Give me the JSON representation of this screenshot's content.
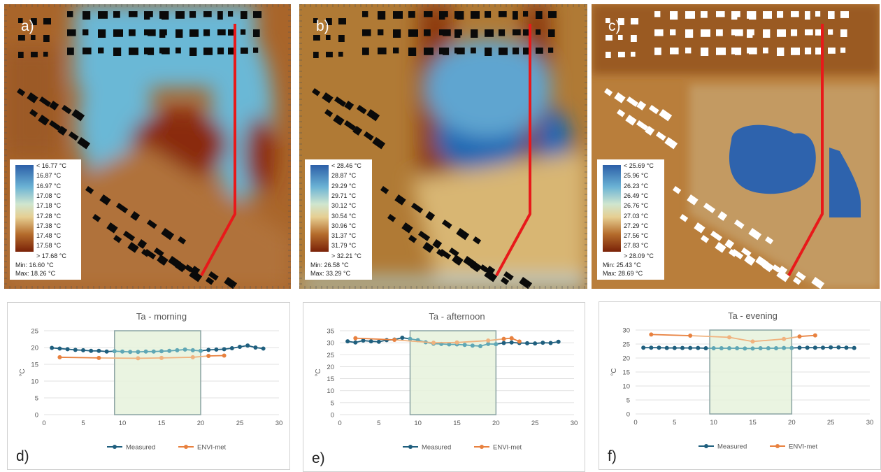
{
  "maps": [
    {
      "letter": "a)",
      "ticks": [
        "< 16.77 °C",
        "16.87 °C",
        "16.97 °C",
        "17.08 °C",
        "17.18 °C",
        "17.28 °C",
        "17.38 °C",
        "17.48 °C",
        "17.58 °C",
        "> 17.68 °C"
      ],
      "min": "Min: 16.60 °C",
      "max": "Max: 18.26 °C"
    },
    {
      "letter": "b)",
      "ticks": [
        "< 28.46 °C",
        "28.87  °C",
        "29.29  °C",
        "29.71  °C",
        "30.12  °C",
        "30.54  °C",
        "30.96  °C",
        "31.37  °C",
        "31.79  °C",
        "> 32.21 °C"
      ],
      "min": "Min: 26.58 °C",
      "max": "Max: 33.29 °C"
    },
    {
      "letter": "c)",
      "ticks": [
        "< 25.69 °C",
        "25.96  °C",
        "26.23  °C",
        "26.49  °C",
        "26.76  °C",
        "27.03  °C",
        "27.29  °C",
        "27.56  °C",
        "27.83  °C",
        "> 28.09 °C"
      ],
      "min": "Min: 25.43 °C",
      "max": "Max: 28.69 °C"
    }
  ],
  "colors": {
    "measured": "#1f5f7e",
    "measured_light": "#5fa7b5",
    "envimet": "#e8813f",
    "envimet_light": "#f0b27e",
    "highlight_fill": "#e6f2dc",
    "highlight_stroke": "#8aa3a3",
    "path": "#e8191a"
  },
  "chart_data": [
    {
      "type": "line",
      "letter": "d)",
      "title": "Ta - morning",
      "ylabel": "°C",
      "xlim": [
        0,
        30
      ],
      "ylim": [
        0,
        25
      ],
      "xticks": [
        0,
        5,
        10,
        15,
        20,
        25,
        30
      ],
      "yticks": [
        0,
        5,
        10,
        15,
        20,
        25
      ],
      "highlight_x": [
        9,
        20
      ],
      "series": [
        {
          "name": "Measured",
          "x": [
            1,
            2,
            3,
            4,
            5,
            6,
            7,
            8,
            9,
            10,
            11,
            12,
            13,
            14,
            15,
            16,
            17,
            18,
            19,
            20,
            21,
            22,
            23,
            24,
            25,
            26,
            27,
            28
          ],
          "y": [
            19.9,
            19.7,
            19.5,
            19.3,
            19.2,
            19.0,
            19.0,
            18.8,
            18.9,
            18.8,
            18.7,
            18.7,
            18.8,
            18.8,
            18.9,
            19.0,
            19.2,
            19.4,
            19.2,
            19.0,
            19.3,
            19.4,
            19.5,
            19.8,
            20.2,
            20.6,
            20.0,
            19.7
          ]
        },
        {
          "name": "ENVI-met",
          "x": [
            2,
            7,
            12,
            15,
            19,
            21,
            23
          ],
          "y": [
            17.1,
            16.9,
            16.8,
            16.9,
            17.1,
            17.5,
            17.6
          ]
        }
      ]
    },
    {
      "type": "line",
      "letter": "e)",
      "title": "Ta - afternoon",
      "ylabel": "°C",
      "xlim": [
        0,
        30
      ],
      "ylim": [
        0,
        35
      ],
      "xticks": [
        0,
        5,
        10,
        15,
        20,
        25,
        30
      ],
      "yticks": [
        0,
        5,
        10,
        15,
        20,
        25,
        30,
        35
      ],
      "highlight_x": [
        9,
        20
      ],
      "series": [
        {
          "name": "Measured",
          "x": [
            1,
            2,
            3,
            4,
            5,
            6,
            7,
            8,
            9,
            10,
            11,
            12,
            13,
            14,
            15,
            16,
            17,
            18,
            19,
            20,
            21,
            22,
            23,
            24,
            25,
            26,
            27,
            28
          ],
          "y": [
            30.6,
            30.1,
            30.9,
            30.6,
            30.4,
            31.1,
            31.3,
            32.1,
            31.6,
            31.1,
            30.2,
            29.6,
            29.5,
            29.3,
            29.3,
            29.1,
            28.8,
            28.6,
            29.5,
            29.4,
            29.9,
            30.1,
            29.9,
            29.8,
            29.7,
            30.0,
            29.9,
            30.4
          ]
        },
        {
          "name": "ENVI-met",
          "x": [
            2,
            7,
            12,
            15,
            19,
            21,
            22,
            23
          ],
          "y": [
            31.9,
            31.2,
            30.0,
            30.1,
            30.9,
            31.6,
            31.9,
            30.5
          ]
        }
      ]
    },
    {
      "type": "line",
      "letter": "f)",
      "title": "Ta - evening",
      "ylabel": "°C",
      "xlim": [
        0,
        30
      ],
      "ylim": [
        0,
        30
      ],
      "xticks": [
        0,
        5,
        10,
        15,
        20,
        25,
        30
      ],
      "yticks": [
        0,
        5,
        10,
        15,
        20,
        25,
        30
      ],
      "highlight_x": [
        9.5,
        20
      ],
      "series": [
        {
          "name": "Measured",
          "x": [
            1,
            2,
            3,
            4,
            5,
            6,
            7,
            8,
            9,
            10,
            11,
            12,
            13,
            14,
            15,
            16,
            17,
            18,
            19,
            20,
            21,
            22,
            23,
            24,
            25,
            26,
            27,
            28
          ],
          "y": [
            23.7,
            23.7,
            23.7,
            23.6,
            23.6,
            23.6,
            23.6,
            23.6,
            23.5,
            23.5,
            23.5,
            23.5,
            23.5,
            23.4,
            23.4,
            23.5,
            23.5,
            23.5,
            23.6,
            23.6,
            23.7,
            23.7,
            23.7,
            23.7,
            23.8,
            23.8,
            23.7,
            23.6
          ]
        },
        {
          "name": "ENVI-met",
          "x": [
            2,
            7,
            12,
            15,
            19,
            21,
            23
          ],
          "y": [
            28.4,
            28.0,
            27.4,
            25.9,
            26.8,
            27.7,
            28.1
          ]
        }
      ]
    }
  ]
}
